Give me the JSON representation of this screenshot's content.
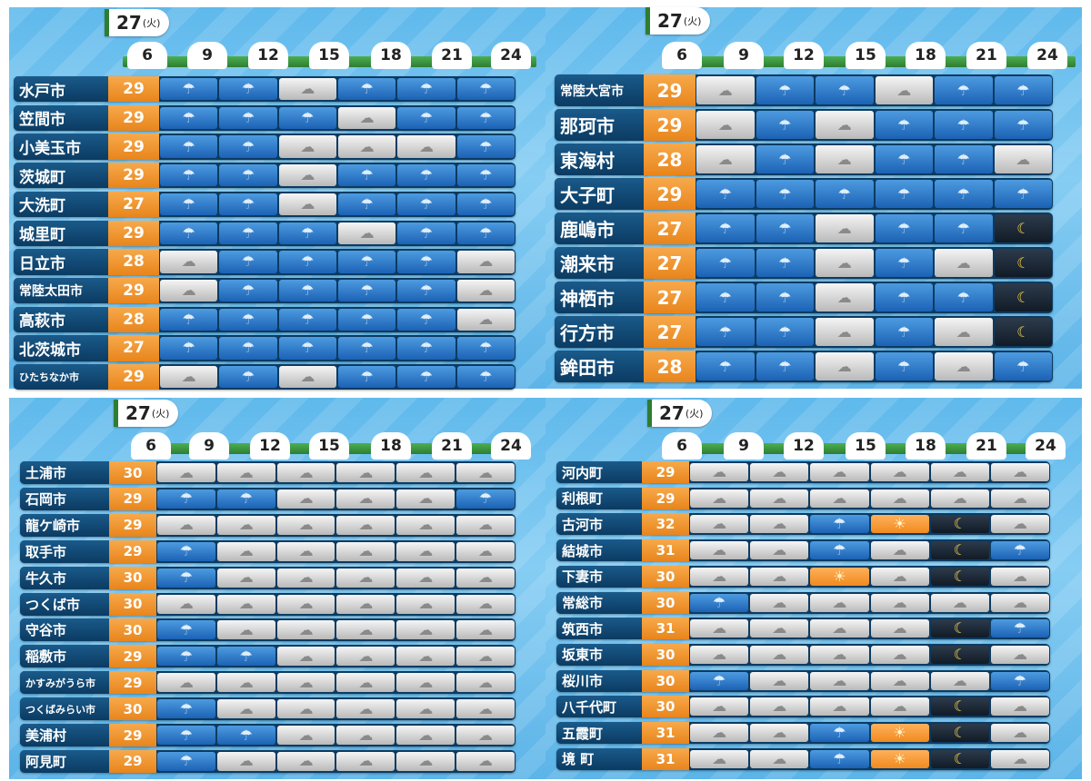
{
  "date_day": "27",
  "date_weekday": "(火)",
  "hours": [
    "6",
    "9",
    "12",
    "15",
    "18",
    "21",
    "24"
  ],
  "icons": {
    "rain": "☂",
    "cloud": "☁",
    "sun": "☀",
    "night": "☾"
  },
  "panels": [
    {
      "rows": [
        {
          "name": "水戸市",
          "temp": "29",
          "w": [
            "rain",
            "rain",
            "cloud",
            "rain",
            "rain",
            "rain"
          ]
        },
        {
          "name": "笠間市",
          "temp": "29",
          "w": [
            "rain",
            "rain",
            "rain",
            "cloud",
            "rain",
            "rain"
          ]
        },
        {
          "name": "小美玉市",
          "temp": "29",
          "w": [
            "rain",
            "rain",
            "cloud",
            "cloud",
            "cloud",
            "rain"
          ]
        },
        {
          "name": "茨城町",
          "temp": "29",
          "w": [
            "rain",
            "rain",
            "cloud",
            "rain",
            "rain",
            "rain"
          ]
        },
        {
          "name": "大洗町",
          "temp": "27",
          "w": [
            "rain",
            "rain",
            "cloud",
            "rain",
            "rain",
            "rain"
          ]
        },
        {
          "name": "城里町",
          "temp": "29",
          "w": [
            "rain",
            "rain",
            "rain",
            "cloud",
            "rain",
            "rain"
          ]
        },
        {
          "name": "日立市",
          "temp": "28",
          "w": [
            "cloud",
            "rain",
            "rain",
            "rain",
            "rain",
            "cloud"
          ]
        },
        {
          "name": "常陸太田市",
          "temp": "29",
          "w": [
            "cloud",
            "rain",
            "rain",
            "rain",
            "rain",
            "cloud"
          ]
        },
        {
          "name": "高萩市",
          "temp": "28",
          "w": [
            "rain",
            "rain",
            "rain",
            "rain",
            "rain",
            "cloud"
          ]
        },
        {
          "name": "北茨城市",
          "temp": "27",
          "w": [
            "rain",
            "rain",
            "rain",
            "rain",
            "rain",
            "rain"
          ]
        },
        {
          "name": "ひたちなか市",
          "temp": "29",
          "w": [
            "cloud",
            "rain",
            "cloud",
            "rain",
            "rain",
            "rain"
          ]
        }
      ]
    },
    {
      "rows": [
        {
          "name": "常陸大宮市",
          "temp": "29",
          "w": [
            "cloud",
            "rain",
            "rain",
            "cloud",
            "rain",
            "rain"
          ]
        },
        {
          "name": "那珂市",
          "temp": "29",
          "w": [
            "cloud",
            "rain",
            "cloud",
            "rain",
            "rain",
            "rain"
          ]
        },
        {
          "name": "東海村",
          "temp": "28",
          "w": [
            "cloud",
            "rain",
            "cloud",
            "rain",
            "rain",
            "cloud"
          ]
        },
        {
          "name": "大子町",
          "temp": "29",
          "w": [
            "rain",
            "rain",
            "rain",
            "rain",
            "rain",
            "rain"
          ]
        },
        {
          "name": "鹿嶋市",
          "temp": "27",
          "w": [
            "rain",
            "rain",
            "cloud",
            "rain",
            "rain",
            "night"
          ]
        },
        {
          "name": "潮来市",
          "temp": "27",
          "w": [
            "rain",
            "rain",
            "cloud",
            "rain",
            "cloud",
            "night"
          ]
        },
        {
          "name": "神栖市",
          "temp": "27",
          "w": [
            "rain",
            "rain",
            "cloud",
            "rain",
            "rain",
            "night"
          ]
        },
        {
          "name": "行方市",
          "temp": "27",
          "w": [
            "rain",
            "rain",
            "cloud",
            "rain",
            "cloud",
            "night"
          ]
        },
        {
          "name": "鉾田市",
          "temp": "28",
          "w": [
            "rain",
            "rain",
            "cloud",
            "rain",
            "cloud",
            "rain"
          ]
        }
      ]
    },
    {
      "rows": [
        {
          "name": "土浦市",
          "temp": "30",
          "w": [
            "cloud",
            "cloud",
            "cloud",
            "cloud",
            "cloud",
            "cloud"
          ]
        },
        {
          "name": "石岡市",
          "temp": "29",
          "w": [
            "rain",
            "rain",
            "cloud",
            "cloud",
            "cloud",
            "rain"
          ]
        },
        {
          "name": "龍ケ崎市",
          "temp": "29",
          "w": [
            "cloud",
            "cloud",
            "cloud",
            "cloud",
            "cloud",
            "cloud"
          ]
        },
        {
          "name": "取手市",
          "temp": "29",
          "w": [
            "rain",
            "cloud",
            "cloud",
            "cloud",
            "cloud",
            "cloud"
          ]
        },
        {
          "name": "牛久市",
          "temp": "30",
          "w": [
            "rain",
            "cloud",
            "cloud",
            "cloud",
            "cloud",
            "cloud"
          ]
        },
        {
          "name": "つくば市",
          "temp": "30",
          "w": [
            "cloud",
            "cloud",
            "cloud",
            "cloud",
            "cloud",
            "cloud"
          ]
        },
        {
          "name": "守谷市",
          "temp": "30",
          "w": [
            "rain",
            "cloud",
            "cloud",
            "cloud",
            "cloud",
            "cloud"
          ]
        },
        {
          "name": "稲敷市",
          "temp": "29",
          "w": [
            "rain",
            "rain",
            "cloud",
            "cloud",
            "cloud",
            "cloud"
          ]
        },
        {
          "name": "かすみがうら市",
          "temp": "29",
          "w": [
            "cloud",
            "cloud",
            "cloud",
            "cloud",
            "cloud",
            "cloud"
          ]
        },
        {
          "name": "つくばみらい市",
          "temp": "30",
          "w": [
            "rain",
            "cloud",
            "cloud",
            "cloud",
            "cloud",
            "cloud"
          ]
        },
        {
          "name": "美浦村",
          "temp": "29",
          "w": [
            "rain",
            "rain",
            "cloud",
            "cloud",
            "cloud",
            "cloud"
          ]
        },
        {
          "name": "阿見町",
          "temp": "29",
          "w": [
            "rain",
            "cloud",
            "cloud",
            "cloud",
            "cloud",
            "cloud"
          ]
        }
      ]
    },
    {
      "rows": [
        {
          "name": "河内町",
          "temp": "29",
          "w": [
            "cloud",
            "cloud",
            "cloud",
            "cloud",
            "cloud",
            "cloud"
          ]
        },
        {
          "name": "利根町",
          "temp": "29",
          "w": [
            "cloud",
            "cloud",
            "cloud",
            "cloud",
            "cloud",
            "cloud"
          ]
        },
        {
          "name": "古河市",
          "temp": "32",
          "w": [
            "cloud",
            "cloud",
            "rain",
            "sun",
            "night",
            "cloud"
          ]
        },
        {
          "name": "結城市",
          "temp": "31",
          "w": [
            "cloud",
            "cloud",
            "rain",
            "cloud",
            "night",
            "rain"
          ]
        },
        {
          "name": "下妻市",
          "temp": "30",
          "w": [
            "cloud",
            "cloud",
            "sun",
            "cloud",
            "night",
            "cloud"
          ]
        },
        {
          "name": "常総市",
          "temp": "30",
          "w": [
            "rain",
            "cloud",
            "cloud",
            "cloud",
            "cloud",
            "cloud"
          ]
        },
        {
          "name": "筑西市",
          "temp": "31",
          "w": [
            "cloud",
            "cloud",
            "cloud",
            "cloud",
            "night",
            "rain"
          ]
        },
        {
          "name": "坂東市",
          "temp": "30",
          "w": [
            "cloud",
            "cloud",
            "cloud",
            "cloud",
            "night",
            "cloud"
          ]
        },
        {
          "name": "桜川市",
          "temp": "30",
          "w": [
            "rain",
            "cloud",
            "cloud",
            "cloud",
            "cloud",
            "rain"
          ]
        },
        {
          "name": "八千代町",
          "temp": "30",
          "w": [
            "cloud",
            "cloud",
            "cloud",
            "cloud",
            "night",
            "cloud"
          ]
        },
        {
          "name": "五霞町",
          "temp": "31",
          "w": [
            "cloud",
            "cloud",
            "rain",
            "sun",
            "night",
            "cloud"
          ]
        },
        {
          "name": "境 町",
          "temp": "31",
          "w": [
            "cloud",
            "cloud",
            "rain",
            "sun",
            "night",
            "cloud"
          ]
        }
      ]
    }
  ]
}
